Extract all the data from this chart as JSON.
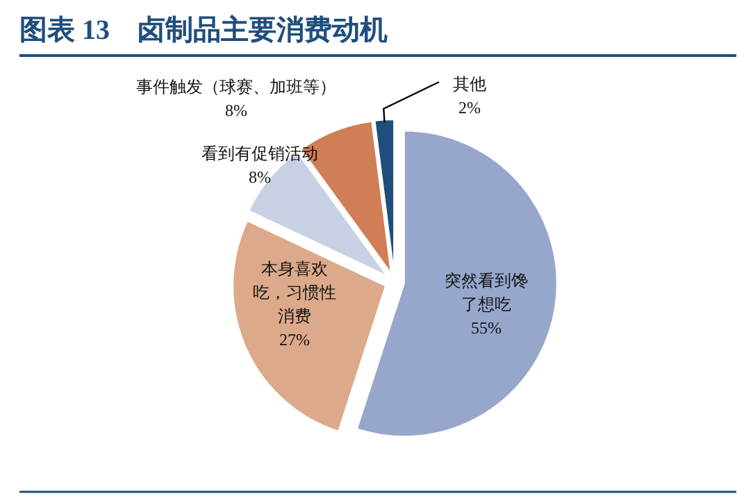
{
  "chart_data": {
    "type": "pie",
    "title": "图表 13　卤制品主要消费动机",
    "categories": [
      "突然看到馋了想吃",
      "本身喜欢吃，习惯性消费",
      "看到有促销活动",
      "事件触发（球赛、加班等）",
      "其他"
    ],
    "values": [
      55,
      27,
      8,
      8,
      2
    ],
    "value_labels": [
      "55%",
      "27%",
      "8%",
      "8%",
      "2%"
    ],
    "colors": [
      "#97a7cb",
      "#dcaa8a",
      "#c8d0e4",
      "#d07e56",
      "#1f4e7e"
    ]
  }
}
